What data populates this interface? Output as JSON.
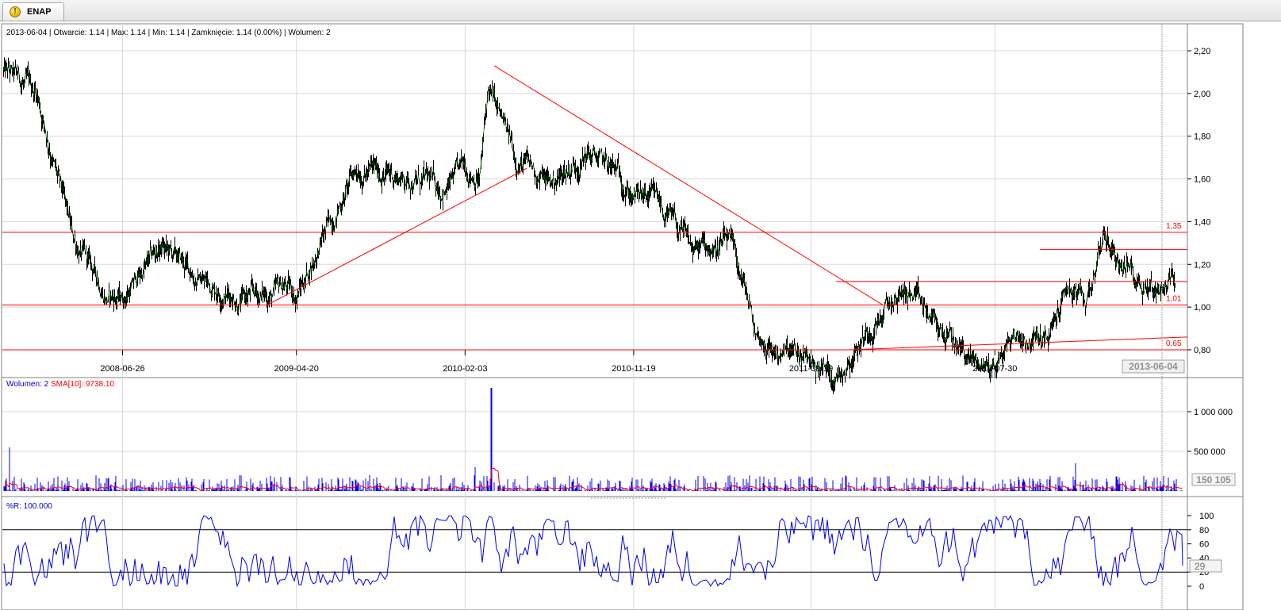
{
  "tab": {
    "label": "ENAP",
    "icon": "warning-icon"
  },
  "price_panel": {
    "info_date": "2013-06-04",
    "info_open": "Otwarcie: 1.14",
    "info_max": "Max: 1.14",
    "info_min": "Min: 1.14",
    "info_close": "Zamknięcie: 1.14 (0.00%)",
    "info_volume": "Wolumen: 2",
    "level_labels": [
      "1,35",
      "1,01",
      "0,65"
    ]
  },
  "volume_panel": {
    "label": "Wolumen: 2",
    "sma_label": "SMA[10]: 9738.10",
    "current_value": "150 105"
  },
  "wr_panel": {
    "label": "%R: 100.000",
    "current_value": "29"
  },
  "x_axis": {
    "ticks": [
      "2008-06-26",
      "2009-04-20",
      "2010-02-03",
      "2010-11-19",
      "2011-09-19",
      "2012-07-30"
    ],
    "current_date": "2013-06-04"
  },
  "colors": {
    "price": "#000000",
    "trend": "#ff0000",
    "volume": "#0000ff",
    "sma": "#ff0000",
    "wr": "#0000ff",
    "grid": "#d8d8d8"
  },
  "chart_data": [
    {
      "type": "line",
      "title": "ENAP",
      "x_range": [
        "2007-12-03",
        "2013-06-25"
      ],
      "y_ticks": [
        "2,20",
        "2,00",
        "1,80",
        "1,60",
        "1,40",
        "1,20",
        "1,00",
        "0,80"
      ],
      "ylim": [
        0.65,
        2.25
      ],
      "grid": true,
      "series": [
        {
          "x": [
            "2007-12-05",
            "2008-02-01",
            "2008-04-01",
            "2008-06-01",
            "2008-06-26",
            "2008-09-01",
            "2008-11-01",
            "2009-01-15",
            "2009-03-15",
            "2009-04-01",
            "2009-04-20",
            "2009-06-01",
            "2009-08-01",
            "2009-10-01",
            "2009-12-01",
            "2010-01-01",
            "2010-02-03",
            "2010-03-01",
            "2010-03-15",
            "2010-05-01",
            "2010-07-01",
            "2010-09-01",
            "2010-11-01",
            "2010-11-19",
            "2011-01-01",
            "2011-03-01",
            "2011-05-01",
            "2011-06-01",
            "2011-06-15",
            "2011-07-15",
            "2011-09-19",
            "2011-11-01",
            "2012-01-01",
            "2012-03-01",
            "2012-04-01",
            "2012-05-01",
            "2012-07-01",
            "2012-07-30",
            "2012-09-01",
            "2012-11-01",
            "2012-12-01",
            "2013-01-01",
            "2013-02-01",
            "2013-03-01",
            "2013-04-01",
            "2013-05-01",
            "2013-06-04"
          ],
          "y": [
            2.1,
            2.0,
            1.32,
            1.05,
            1.04,
            1.28,
            1.14,
            1.04,
            1.06,
            1.1,
            1.05,
            1.3,
            1.65,
            1.62,
            1.58,
            1.55,
            1.65,
            1.62,
            2.02,
            1.7,
            1.58,
            1.72,
            1.6,
            1.52,
            1.48,
            1.26,
            1.3,
            1.05,
            0.88,
            0.8,
            0.74,
            0.68,
            0.92,
            1.08,
            0.97,
            0.88,
            0.73,
            0.72,
            0.87,
            0.84,
            1.1,
            1.0,
            1.34,
            1.22,
            1.14,
            1.09,
            1.14
          ]
        }
      ],
      "overlays": {
        "horizontal_levels": [
          1.35,
          1.01,
          0.65,
          1.27,
          1.12
        ],
        "trendlines": [
          {
            "from": [
              "2009-03-01",
              1.01
            ],
            "to": [
              "2010-05-20",
              1.65
            ]
          },
          {
            "from": [
              "2010-03-25",
              2.13
            ],
            "to": [
              "2012-01-20",
              1.01
            ]
          },
          {
            "from": [
              "2011-11-25",
              0.66
            ],
            "to": [
              "2013-06-25",
              0.86
            ]
          }
        ]
      }
    },
    {
      "type": "bar",
      "title": "Wolumen",
      "y_ticks": [
        "1 000 000",
        "500 000"
      ],
      "ylim": [
        0,
        1300000
      ],
      "spikes": [
        {
          "x": "2007-12-15",
          "value": 550000
        },
        {
          "x": "2010-03-20",
          "value": 1300000
        },
        {
          "x": "2010-02-20",
          "value": 300000
        },
        {
          "x": "2012-12-15",
          "value": 350000
        }
      ],
      "typical_value": 80000
    },
    {
      "type": "line",
      "title": "%R",
      "y_ticks": [
        "100",
        "80",
        "60",
        "40",
        "20",
        "0"
      ],
      "ylim": [
        0,
        100
      ],
      "reference_lines": [
        80,
        20
      ],
      "current_value": 29
    }
  ]
}
